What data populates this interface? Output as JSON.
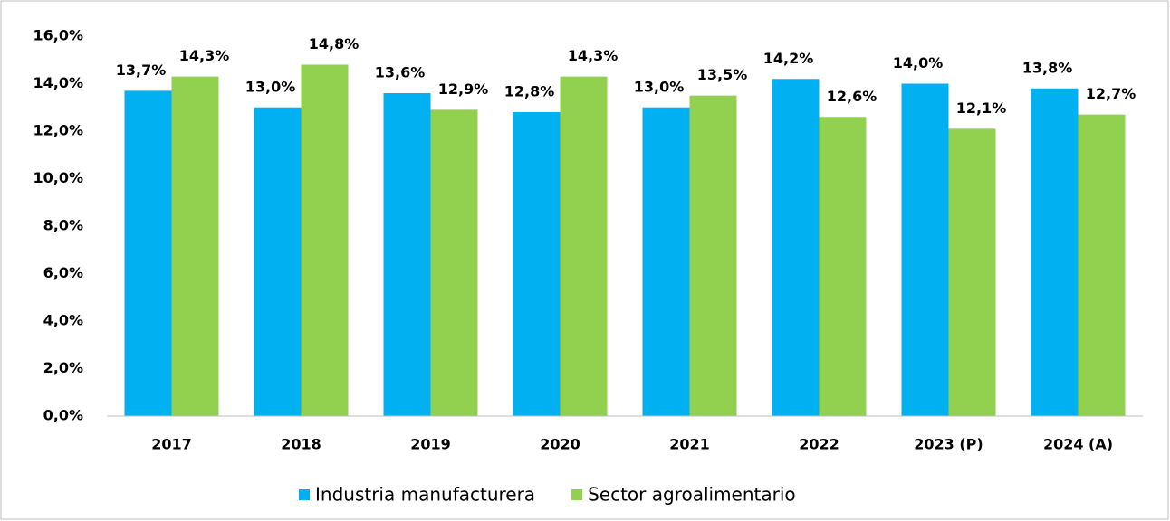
{
  "chart_data": {
    "type": "bar",
    "categories": [
      "2017",
      "2018",
      "2019",
      "2020",
      "2021",
      "2022",
      "2023 (P)",
      "2024 (A)"
    ],
    "series": [
      {
        "name": "Industria manufacturera",
        "color": "#00b0f0",
        "values": [
          13.7,
          13.0,
          13.6,
          12.8,
          13.0,
          14.2,
          14.0,
          13.8
        ],
        "value_labels": [
          "13,7%",
          "13,0%",
          "13,6%",
          "12,8%",
          "13,0%",
          "14,2%",
          "14,0%",
          "13,8%"
        ]
      },
      {
        "name": "Sector agroalimentario",
        "color": "#92d050",
        "values": [
          14.3,
          14.8,
          12.9,
          14.3,
          13.5,
          12.6,
          12.1,
          12.7
        ],
        "value_labels": [
          "14,3%",
          "14,8%",
          "12,9%",
          "14,3%",
          "13,5%",
          "12,6%",
          "12,1%",
          "12,7%"
        ]
      }
    ],
    "ylim": [
      0,
      16
    ],
    "yticks": [
      {
        "value": 0,
        "label": "0,0%"
      },
      {
        "value": 2,
        "label": "2,0%"
      },
      {
        "value": 4,
        "label": "4,0%"
      },
      {
        "value": 6,
        "label": "6,0%"
      },
      {
        "value": 8,
        "label": "8,0%"
      },
      {
        "value": 10,
        "label": "10,0%"
      },
      {
        "value": 12,
        "label": "12,0%"
      },
      {
        "value": 14,
        "label": "14,0%"
      },
      {
        "value": 16,
        "label": "16,0%"
      }
    ],
    "grid": false,
    "legend": "bottom"
  }
}
